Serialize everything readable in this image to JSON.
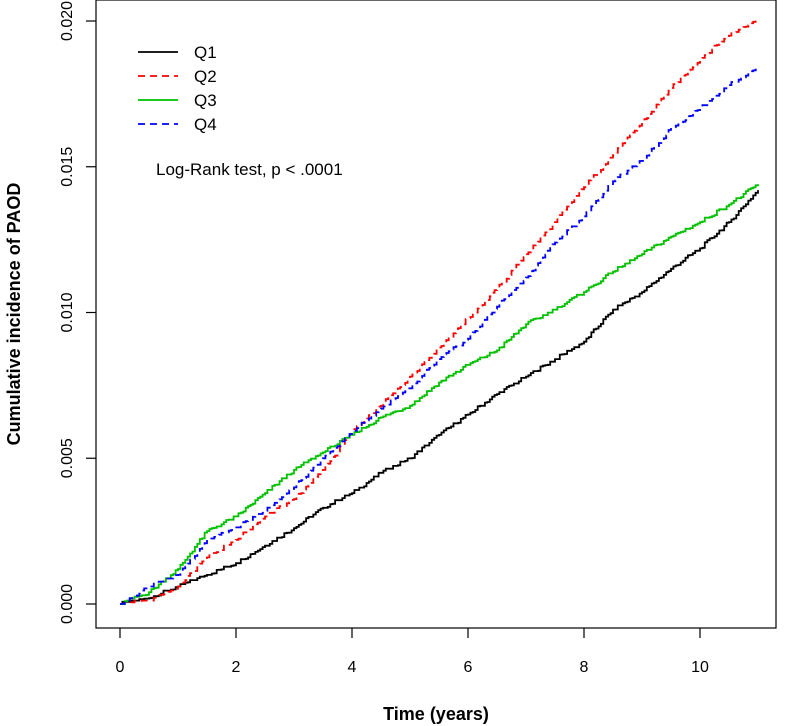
{
  "chart_data": {
    "type": "line",
    "title": "",
    "xlabel": "Time (years)",
    "ylabel": "Cumulative incidence of PAOD",
    "xlim": [
      0,
      11
    ],
    "ylim": [
      0,
      0.02
    ],
    "x_ticks": [
      0,
      2,
      4,
      6,
      8,
      10
    ],
    "x_tick_labels": [
      "0",
      "2",
      "4",
      "6",
      "8",
      "10"
    ],
    "y_ticks": [
      0,
      0.005,
      0.01,
      0.015,
      0.02
    ],
    "y_tick_labels": [
      "0.000",
      "0.005",
      "0.010",
      "0.015",
      "0.020"
    ],
    "legend_position": "top-left",
    "annotation": "Log-Rank test, p < .0001",
    "series": [
      {
        "name": "Q1",
        "color": "#000000",
        "dash": "solid",
        "points": [
          [
            0,
            0
          ],
          [
            0.5,
            0.0002
          ],
          [
            1,
            0.0006
          ],
          [
            1.5,
            0.001
          ],
          [
            2,
            0.0014
          ],
          [
            2.5,
            0.002
          ],
          [
            3,
            0.0026
          ],
          [
            3.5,
            0.0033
          ],
          [
            4,
            0.0038
          ],
          [
            4.5,
            0.0045
          ],
          [
            5,
            0.005
          ],
          [
            5.5,
            0.0058
          ],
          [
            6,
            0.0065
          ],
          [
            6.5,
            0.0072
          ],
          [
            7,
            0.0078
          ],
          [
            7.5,
            0.0084
          ],
          [
            8,
            0.009
          ],
          [
            8.5,
            0.0101
          ],
          [
            9,
            0.0107
          ],
          [
            9.5,
            0.0115
          ],
          [
            10,
            0.0122
          ],
          [
            10.5,
            0.0131
          ],
          [
            11,
            0.0142
          ]
        ]
      },
      {
        "name": "Q2",
        "color": "#ff0000",
        "dash": "dashed",
        "points": [
          [
            0,
            0
          ],
          [
            0.5,
            0.0001
          ],
          [
            1,
            0.0006
          ],
          [
            1.5,
            0.0016
          ],
          [
            2,
            0.0022
          ],
          [
            2.5,
            0.003
          ],
          [
            3,
            0.0036
          ],
          [
            3.5,
            0.0046
          ],
          [
            4,
            0.0059
          ],
          [
            4.5,
            0.0068
          ],
          [
            5,
            0.0078
          ],
          [
            5.5,
            0.0088
          ],
          [
            6,
            0.0098
          ],
          [
            6.5,
            0.0108
          ],
          [
            7,
            0.012
          ],
          [
            7.5,
            0.0131
          ],
          [
            8,
            0.0143
          ],
          [
            8.5,
            0.0154
          ],
          [
            9,
            0.0165
          ],
          [
            9.5,
            0.0177
          ],
          [
            10,
            0.0187
          ],
          [
            10.5,
            0.0195
          ],
          [
            11,
            0.0201
          ]
        ]
      },
      {
        "name": "Q3",
        "color": "#00c000",
        "dash": "solid",
        "points": [
          [
            0,
            0
          ],
          [
            0.5,
            0.0004
          ],
          [
            1,
            0.0012
          ],
          [
            1.5,
            0.0025
          ],
          [
            2,
            0.003
          ],
          [
            2.5,
            0.0038
          ],
          [
            3,
            0.0046
          ],
          [
            3.5,
            0.0052
          ],
          [
            4,
            0.0058
          ],
          [
            4.5,
            0.0064
          ],
          [
            5,
            0.0068
          ],
          [
            5.5,
            0.0076
          ],
          [
            6,
            0.0082
          ],
          [
            6.5,
            0.0087
          ],
          [
            7,
            0.0096
          ],
          [
            7.5,
            0.0101
          ],
          [
            8,
            0.0107
          ],
          [
            8.5,
            0.0114
          ],
          [
            9,
            0.012
          ],
          [
            9.5,
            0.0126
          ],
          [
            10,
            0.0131
          ],
          [
            10.5,
            0.0137
          ],
          [
            11,
            0.0144
          ]
        ]
      },
      {
        "name": "Q4",
        "color": "#0000ff",
        "dash": "dashed",
        "points": [
          [
            0,
            0
          ],
          [
            0.5,
            0.0006
          ],
          [
            1,
            0.001
          ],
          [
            1.5,
            0.0022
          ],
          [
            2,
            0.0026
          ],
          [
            2.5,
            0.0032
          ],
          [
            3,
            0.004
          ],
          [
            3.5,
            0.005
          ],
          [
            4,
            0.0059
          ],
          [
            4.5,
            0.0067
          ],
          [
            5,
            0.0074
          ],
          [
            5.5,
            0.0084
          ],
          [
            6,
            0.0091
          ],
          [
            6.5,
            0.0102
          ],
          [
            7,
            0.0112
          ],
          [
            7.5,
            0.0124
          ],
          [
            8,
            0.0133
          ],
          [
            8.5,
            0.0145
          ],
          [
            9,
            0.0152
          ],
          [
            9.5,
            0.0163
          ],
          [
            10,
            0.017
          ],
          [
            10.5,
            0.0178
          ],
          [
            11,
            0.0184
          ]
        ]
      }
    ]
  }
}
